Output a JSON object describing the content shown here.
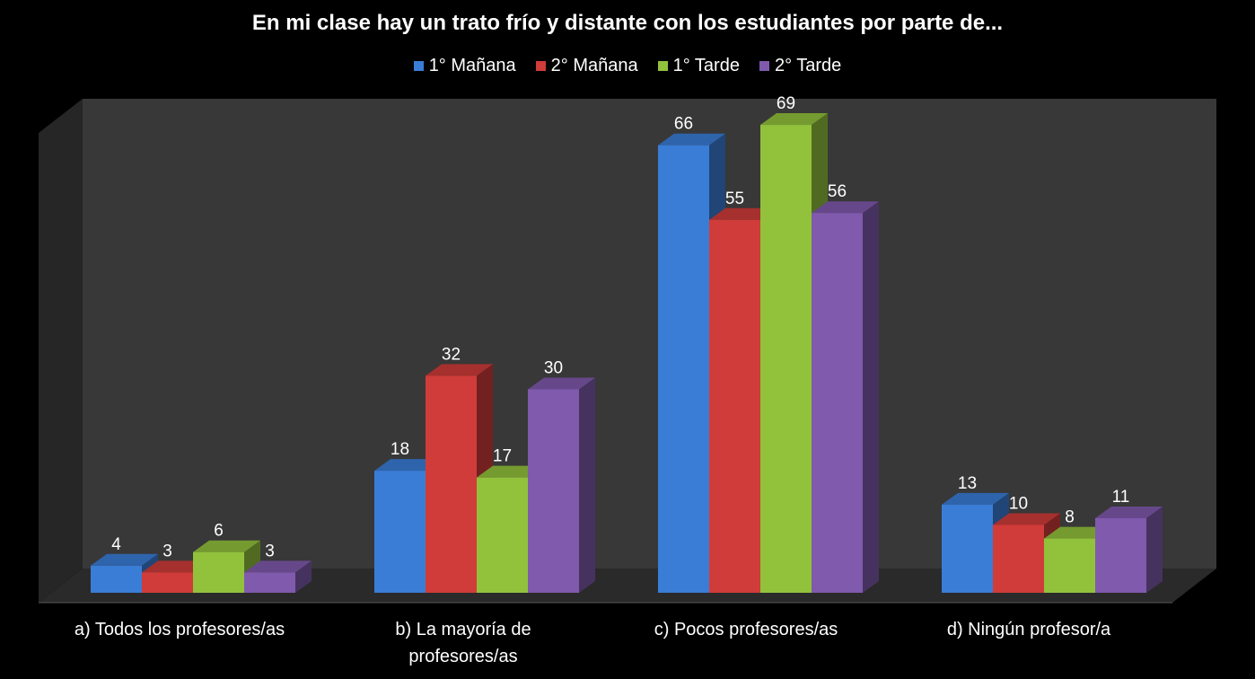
{
  "chart_data": {
    "type": "bar",
    "title": "En mi clase hay un trato frío y distante con los estudiantes por parte de...",
    "categories": [
      "a) Todos los profesores/as",
      "b) La mayoría de profesores/as",
      "c) Pocos profesores/as",
      "d) Ningún profesor/a"
    ],
    "series": [
      {
        "name": "1° Mañana",
        "values": [
          4,
          18,
          66,
          13
        ],
        "color": "#3a7dd6"
      },
      {
        "name": "2° Mañana",
        "values": [
          3,
          32,
          55,
          10
        ],
        "color": "#d03c3a"
      },
      {
        "name": "1° Tarde",
        "values": [
          6,
          17,
          69,
          8
        ],
        "color": "#92c23c"
      },
      {
        "name": "2° Tarde",
        "values": [
          3,
          30,
          56,
          11
        ],
        "color": "#7f5aad"
      }
    ],
    "ylim": [
      0,
      70
    ],
    "legend_position": "top",
    "grid": false,
    "style": "3d-column"
  }
}
